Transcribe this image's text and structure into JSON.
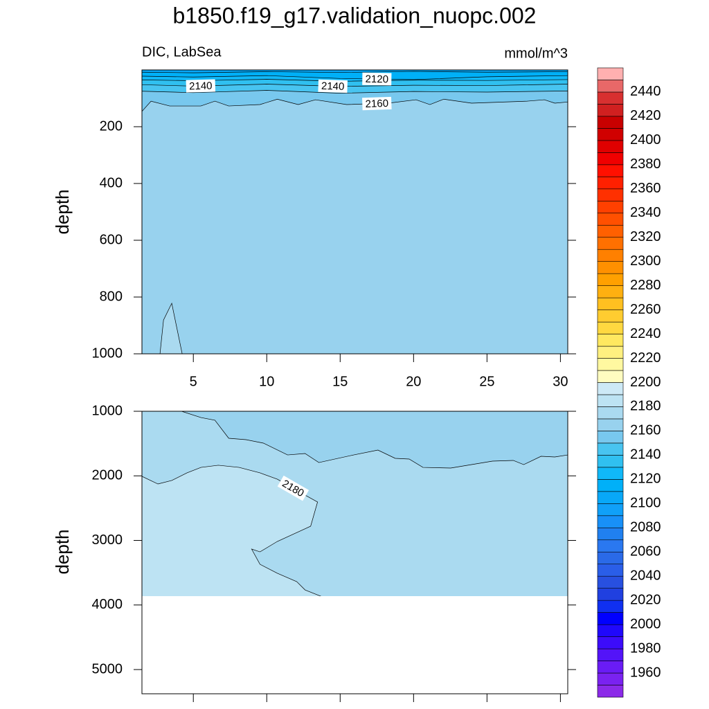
{
  "chart_data": {
    "type": "contour",
    "title": "b1850.f19_g17.validation_nuopc.002",
    "subtitle_left": "DIC, LabSea",
    "subtitle_right": "mmol/m^3",
    "colorbar": {
      "levels": [
        1950,
        1960,
        1970,
        1980,
        1990,
        2000,
        2010,
        2020,
        2030,
        2040,
        2050,
        2060,
        2070,
        2080,
        2090,
        2100,
        2110,
        2120,
        2130,
        2140,
        2150,
        2160,
        2170,
        2180,
        2190,
        2200,
        2210,
        2220,
        2230,
        2240,
        2250,
        2260,
        2270,
        2280,
        2290,
        2300,
        2310,
        2320,
        2330,
        2340,
        2350,
        2360,
        2370,
        2380,
        2390,
        2400,
        2410,
        2420,
        2430,
        2440,
        2450
      ],
      "colors": [
        "#8b2ae8",
        "#7a22f0",
        "#6a1cf5",
        "#5314f8",
        "#3c0cfa",
        "#2008fc",
        "#0000ff",
        "#1030f0",
        "#2040e0",
        "#2850e0",
        "#2a5ee8",
        "#2a6ae8",
        "#2a78f0",
        "#2080f0",
        "#1890f8",
        "#10a0f8",
        "#08a8f8",
        "#00b0f8",
        "#10b8f8",
        "#30c0f0",
        "#48c4f0",
        "#78c8ee",
        "#98d2ee",
        "#aadaf0",
        "#bde3f3",
        "#cde9f6",
        "#fffcc0",
        "#fff8a0",
        "#fff080",
        "#ffe860",
        "#ffd840",
        "#ffcc30",
        "#ffc020",
        "#ffb010",
        "#ffa000",
        "#ff9000",
        "#ff8000",
        "#ff7000",
        "#ff6000",
        "#ff5000",
        "#ff4000",
        "#ff3000",
        "#ff2000",
        "#ff1000",
        "#f00000",
        "#e00000",
        "#d00000",
        "#c80000",
        "#d02020",
        "#d83030",
        "#e86868",
        "#ffb0b0"
      ],
      "ticks": [
        1960,
        1980,
        2000,
        2020,
        2040,
        2060,
        2080,
        2100,
        2120,
        2140,
        2160,
        2180,
        2200,
        2220,
        2240,
        2260,
        2280,
        2300,
        2320,
        2340,
        2360,
        2380,
        2400,
        2420,
        2440
      ]
    },
    "panels": [
      {
        "ylabel": "depth",
        "xlim": [
          1.5,
          30.5
        ],
        "ylim": [
          0,
          1000
        ],
        "y_reversed": true,
        "xticks": [
          5,
          10,
          15,
          20,
          25,
          30
        ],
        "show_xtick_labels": true,
        "yticks": [
          200,
          400,
          600,
          800,
          1000
        ],
        "background_level": 2160,
        "contours": [
          {
            "level": 2160,
            "side": "above",
            "x": [
              1.5,
              2.12,
              3.39,
              5.51,
              6.47,
              7.41,
              9.54,
              10.72,
              12.14,
              13.32,
              15.44,
              18.28,
              20.17,
              21.11,
              22.06,
              23.95,
              27.73,
              28.91,
              29.62,
              30.5
            ],
            "y": [
              146,
              110,
              127,
              127,
              110,
              127,
              122,
              103,
              122,
              105,
              122,
              117,
              105,
              122,
              103,
              117,
              110,
              105,
              117,
              113
            ],
            "label_x": [
              17.5
            ]
          },
          {
            "level": 2150,
            "side": "above",
            "x": [
              1.5,
              5,
              10,
              15,
              20,
              25,
              30.5
            ],
            "y": [
              75,
              80,
              72,
              82,
              76,
              78,
              74
            ]
          },
          {
            "level": 2140,
            "side": "above",
            "x": [
              1.5,
              5,
              10,
              15,
              20,
              25,
              30.5
            ],
            "y": [
              52,
              57,
              50,
              58,
              54,
              55,
              50
            ],
            "label_x": [
              5.5,
              14.5
            ]
          },
          {
            "level": 2130,
            "side": "above",
            "x": [
              1.5,
              5,
              10,
              15,
              20,
              25,
              30.5
            ],
            "y": [
              35,
              38,
              33,
              40,
              36,
              37,
              34
            ]
          },
          {
            "level": 2120,
            "side": "above",
            "x": [
              1.5,
              5,
              10,
              15,
              20,
              25,
              30.5
            ],
            "y": [
              22,
              25,
              20,
              30,
              34,
              24,
              20
            ],
            "label_x": [
              17.5
            ]
          },
          {
            "level": 2110,
            "side": "above",
            "x": [
              1.5,
              5,
              10,
              15,
              20,
              25,
              30.5
            ],
            "y": [
              8,
              10,
              6,
              9,
              5,
              8,
              6
            ]
          },
          {
            "level": 2170,
            "side": "below",
            "x": [
              2.73,
              2.97,
              3.53,
              4.24
            ],
            "y": [
              1000,
              881,
              822,
              1000
            ]
          }
        ]
      },
      {
        "ylabel": "depth",
        "xlim": [
          1.5,
          30.5
        ],
        "ylim": [
          1000,
          5375
        ],
        "y_reversed": true,
        "xticks": [
          5,
          10,
          15,
          20,
          25,
          30
        ],
        "show_xtick_labels": false,
        "yticks": [
          1000,
          2000,
          3000,
          4000,
          5000
        ],
        "background_level": 2170,
        "max_depth": 3863,
        "contours": [
          {
            "level": 2170,
            "side": "above",
            "x": [
              4.2,
              5.52,
              6.47,
              7.41,
              8.59,
              9.77,
              11.42,
              12.61,
              13.55,
              15.92,
              17.57,
              18.75,
              19.7,
              20.64,
              22.53,
              25.37,
              26.79,
              27.5,
              28.68,
              29.62,
              30.5
            ],
            "y": [
              1000,
              1097,
              1139,
              1418,
              1440,
              1493,
              1676,
              1654,
              1794,
              1676,
              1601,
              1729,
              1740,
              1869,
              1879,
              1772,
              1761,
              1826,
              1697,
              1708,
              1676
            ]
          },
          {
            "level": 2180,
            "side": "left",
            "x": [
              1.5,
              2.59,
              3.53,
              4.57,
              5.52,
              6.7,
              8.12,
              9.54,
              10.72,
              12.61,
              13.46,
              12.99,
              10.72,
              9.54,
              8.97,
              9.54,
              10.72,
              12.04,
              12.61,
              13.79
            ],
            "y": [
              2008,
              2126,
              2072,
              1954,
              1869,
              1836,
              1869,
              1954,
              2051,
              2298,
              2405,
              2780,
              3016,
              3177,
              3134,
              3370,
              3509,
              3638,
              3767,
              3874
            ],
            "label_x": [
              11.8
            ]
          }
        ]
      }
    ]
  }
}
